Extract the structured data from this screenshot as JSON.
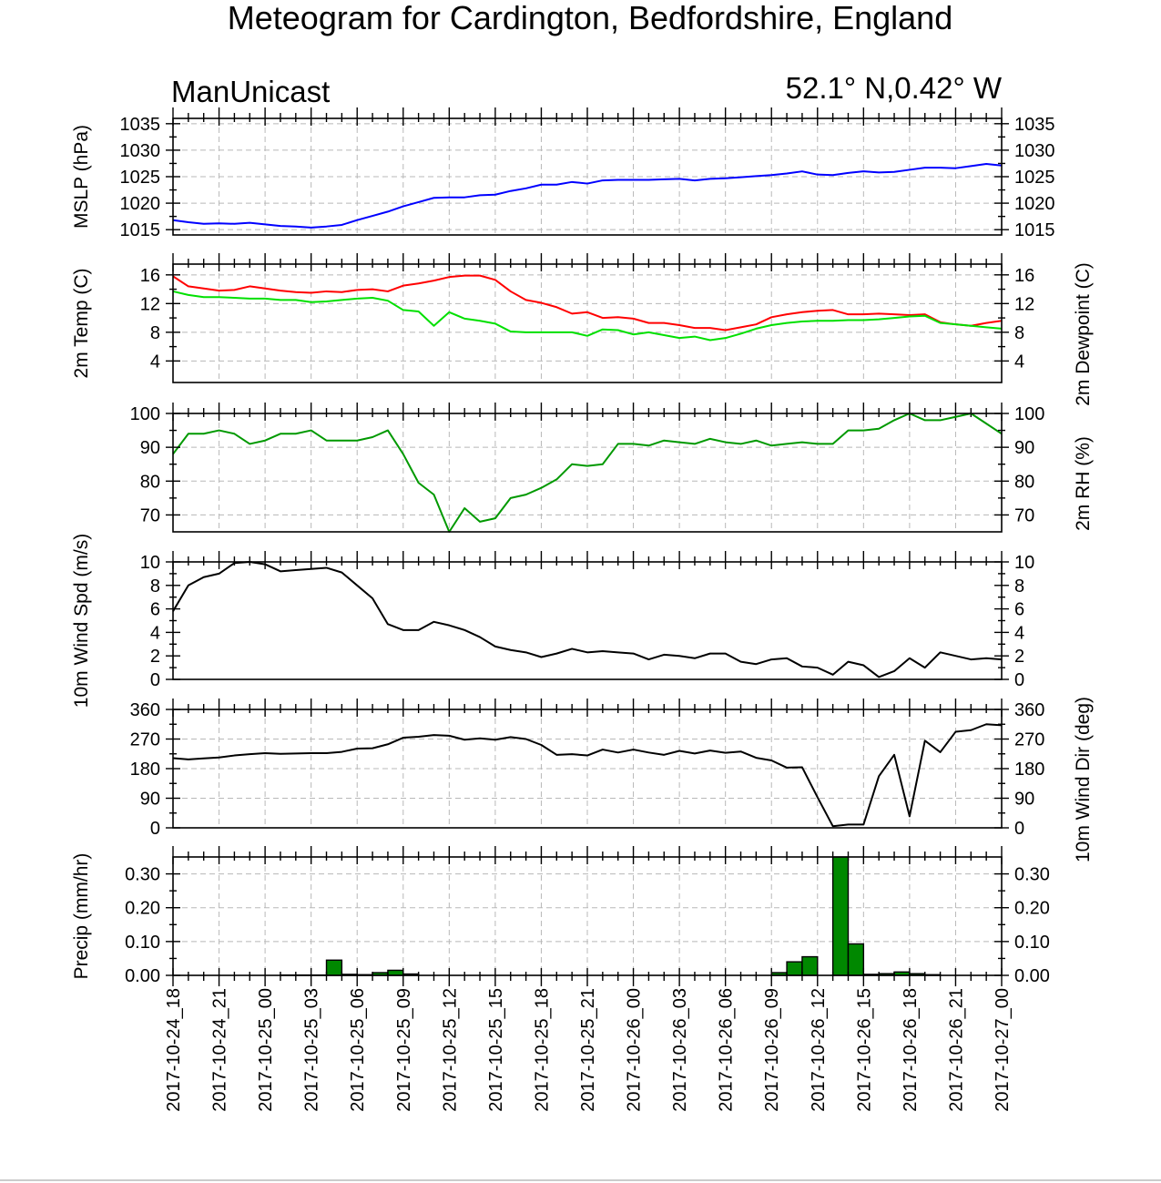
{
  "title": "Meteogram for Cardington, Bedfordshire, England",
  "model": "ManUnicast",
  "location": "52.1° N,0.42° W",
  "colors": {
    "mslp": "#0000ff",
    "temp": "#ff0000",
    "dewpoint": "#00e000",
    "rh": "#009900",
    "wind": "#000000",
    "precip_fill": "#008800"
  },
  "chart_data": [
    {
      "type": "line",
      "ylabel_left": "MSLP (hPa)",
      "ylabel_right": "",
      "ylim": [
        1014,
        1036
      ],
      "yticks": [
        1015,
        1020,
        1025,
        1030,
        1035
      ],
      "right_ticklabels": true,
      "grid": true,
      "x": [
        0,
        1,
        2,
        3,
        4,
        5,
        6,
        7,
        8,
        9,
        10,
        11,
        12,
        13,
        14,
        15,
        16,
        17,
        18,
        19,
        20,
        21,
        22,
        23,
        24,
        25,
        26,
        27,
        28,
        29,
        30,
        31,
        32,
        33,
        34,
        35,
        36,
        37,
        38,
        39,
        40,
        41,
        42,
        43,
        44,
        45,
        46,
        47,
        48,
        49,
        50,
        51,
        52,
        53,
        54
      ],
      "series": [
        {
          "name": "",
          "color": "#0000ff",
          "values": [
            1016.8,
            1016.4,
            1016.1,
            1016.2,
            1016.1,
            1016.3,
            1016.0,
            1015.7,
            1015.6,
            1015.4,
            1015.6,
            1015.9,
            1016.8,
            1017.6,
            1018.4,
            1019.4,
            1020.2,
            1021.0,
            1021.1,
            1021.1,
            1021.5,
            1021.6,
            1022.3,
            1022.8,
            1023.5,
            1023.5,
            1024.0,
            1023.7,
            1024.3,
            1024.4,
            1024.4,
            1024.4,
            1024.5,
            1024.6,
            1024.3,
            1024.6,
            1024.7,
            1024.9,
            1025.1,
            1025.3,
            1025.6,
            1026.0,
            1025.4,
            1025.3,
            1025.7,
            1026.0,
            1025.8,
            1025.9,
            1026.3,
            1026.7,
            1026.7,
            1026.6,
            1027.0,
            1027.4,
            1027.1
          ]
        }
      ]
    },
    {
      "type": "line",
      "ylabel_left": "2m Temp (C)",
      "ylabel_right": "2m Dewpoint (C)",
      "ylim": [
        1,
        17.5
      ],
      "yticks": [
        4,
        8,
        12,
        16
      ],
      "right_ticklabels": true,
      "grid": true,
      "x": [
        0,
        1,
        2,
        3,
        4,
        5,
        6,
        7,
        8,
        9,
        10,
        11,
        12,
        13,
        14,
        15,
        16,
        17,
        18,
        19,
        20,
        21,
        22,
        23,
        24,
        25,
        26,
        27,
        28,
        29,
        30,
        31,
        32,
        33,
        34,
        35,
        36,
        37,
        38,
        39,
        40,
        41,
        42,
        43,
        44,
        45,
        46,
        47,
        48,
        49,
        50,
        51,
        52,
        53,
        54
      ],
      "series": [
        {
          "name": "",
          "color": "#ff0000",
          "values": [
            15.8,
            14.4,
            14.1,
            13.8,
            13.9,
            14.4,
            14.1,
            13.8,
            13.6,
            13.5,
            13.7,
            13.6,
            13.9,
            14.0,
            13.7,
            14.5,
            14.8,
            15.2,
            15.7,
            15.9,
            15.9,
            15.3,
            13.7,
            12.5,
            12.1,
            11.5,
            10.6,
            10.8,
            10.0,
            10.1,
            9.9,
            9.3,
            9.3,
            9.0,
            8.6,
            8.6,
            8.3,
            8.7,
            9.1,
            10.1,
            10.5,
            10.8,
            11.0,
            11.1,
            10.5,
            10.5,
            10.6,
            10.5,
            10.4,
            10.5,
            9.4,
            9.1,
            8.9,
            9.3,
            9.6
          ]
        },
        {
          "name": "",
          "color": "#00e000",
          "values": [
            13.7,
            13.2,
            12.9,
            12.9,
            12.8,
            12.7,
            12.7,
            12.5,
            12.5,
            12.2,
            12.3,
            12.5,
            12.7,
            12.8,
            12.4,
            11.1,
            10.9,
            8.9,
            10.8,
            9.9,
            9.6,
            9.2,
            8.1,
            8.0,
            8.0,
            8.0,
            8.0,
            7.5,
            8.4,
            8.3,
            7.7,
            8.0,
            7.6,
            7.2,
            7.4,
            6.9,
            7.2,
            7.8,
            8.5,
            9.0,
            9.3,
            9.5,
            9.6,
            9.6,
            9.7,
            9.7,
            9.8,
            10.0,
            10.2,
            10.3,
            9.3,
            9.1,
            8.9,
            8.7,
            8.5
          ]
        }
      ]
    },
    {
      "type": "line",
      "ylabel_left": "",
      "ylabel_right": "2m RH (%)",
      "ylim": [
        65,
        100
      ],
      "yticks": [
        70,
        80,
        90,
        100
      ],
      "right_ticklabels": true,
      "grid": true,
      "x": [
        0,
        1,
        2,
        3,
        4,
        5,
        6,
        7,
        8,
        9,
        10,
        11,
        12,
        13,
        14,
        15,
        16,
        17,
        18,
        19,
        20,
        21,
        22,
        23,
        24,
        25,
        26,
        27,
        28,
        29,
        30,
        31,
        32,
        33,
        34,
        35,
        36,
        37,
        38,
        39,
        40,
        41,
        42,
        43,
        44,
        45,
        46,
        47,
        48,
        49,
        50,
        51,
        52,
        53,
        54
      ],
      "series": [
        {
          "name": "",
          "color": "#009900",
          "values": [
            88,
            94,
            94,
            95,
            94,
            91,
            92,
            94,
            94,
            95,
            92,
            92,
            92,
            93,
            95,
            88,
            79.5,
            76,
            65,
            72,
            68,
            69,
            75,
            76,
            78,
            80.5,
            85,
            84.5,
            85,
            91,
            91,
            90.5,
            92,
            91.5,
            91,
            92.5,
            91.5,
            91,
            92,
            90.5,
            91,
            91.5,
            91,
            91,
            95,
            95,
            95.5,
            98,
            100,
            98,
            98,
            99,
            100,
            97,
            94
          ]
        }
      ]
    },
    {
      "type": "line",
      "ylabel_left": "10m Wind Spd (m/s)",
      "ylabel_right": "",
      "ylim": [
        0,
        10
      ],
      "yticks": [
        0,
        2,
        4,
        6,
        8,
        10
      ],
      "right_ticklabels": true,
      "grid": false,
      "x": [
        0,
        1,
        2,
        3,
        4,
        5,
        6,
        7,
        8,
        9,
        10,
        11,
        12,
        13,
        14,
        15,
        16,
        17,
        18,
        19,
        20,
        21,
        22,
        23,
        24,
        25,
        26,
        27,
        28,
        29,
        30,
        31,
        32,
        33,
        34,
        35,
        36,
        37,
        38,
        39,
        40,
        41,
        42,
        43,
        44,
        45,
        46,
        47,
        48,
        49,
        50,
        51,
        52,
        53,
        54
      ],
      "series": [
        {
          "name": "",
          "color": "#000000",
          "values": [
            5.8,
            8.0,
            8.7,
            9.0,
            9.9,
            10.0,
            9.8,
            9.2,
            9.3,
            9.4,
            9.5,
            9.1,
            8.0,
            6.9,
            4.7,
            4.2,
            4.2,
            4.9,
            4.6,
            4.2,
            3.6,
            2.8,
            2.5,
            2.3,
            1.9,
            2.2,
            2.6,
            2.3,
            2.4,
            2.3,
            2.2,
            1.7,
            2.1,
            2.0,
            1.8,
            2.2,
            2.2,
            1.5,
            1.3,
            1.7,
            1.8,
            1.1,
            1.0,
            0.4,
            1.5,
            1.2,
            0.2,
            0.7,
            1.8,
            1.0,
            2.3,
            2.0,
            1.7,
            1.8,
            1.7
          ]
        }
      ]
    },
    {
      "type": "line",
      "ylabel_left": "",
      "ylabel_right": "10m Wind Dir (deg)",
      "ylim": [
        0,
        360
      ],
      "yticks": [
        0,
        90,
        180,
        270,
        360
      ],
      "right_ticklabels": true,
      "grid": true,
      "x": [
        0,
        1,
        2,
        3,
        4,
        5,
        6,
        7,
        8,
        9,
        10,
        11,
        12,
        13,
        14,
        15,
        16,
        17,
        18,
        19,
        20,
        21,
        22,
        23,
        24,
        25,
        26,
        27,
        28,
        29,
        30,
        31,
        32,
        33,
        34,
        35,
        36,
        37,
        38,
        39,
        40,
        41,
        42,
        43,
        44,
        45,
        46,
        47,
        48,
        49,
        50,
        51,
        52,
        53,
        54
      ],
      "series": [
        {
          "name": "",
          "color": "#000000",
          "values": [
            212,
            208,
            211,
            214,
            220,
            224,
            227,
            225,
            226,
            227,
            227,
            231,
            241,
            242,
            254,
            274,
            277,
            282,
            280,
            268,
            272,
            268,
            276,
            270,
            252,
            222,
            224,
            220,
            238,
            229,
            238,
            229,
            222,
            234,
            226,
            235,
            228,
            232,
            213,
            205,
            183,
            184,
            93,
            5,
            10,
            10,
            157,
            222,
            35,
            265,
            230,
            292,
            297,
            315,
            312
          ]
        }
      ]
    },
    {
      "type": "bar",
      "ylabel_left": "Precip (mm/hr)",
      "ylabel_right": "",
      "ylim": [
        0,
        0.35
      ],
      "yticks": [
        0.0,
        0.1,
        0.2,
        0.3
      ],
      "ytick_labels": [
        "0.00",
        "0.10",
        "0.20",
        "0.30"
      ],
      "right_ticklabels": true,
      "grid": true,
      "x": [
        0,
        1,
        2,
        3,
        4,
        5,
        6,
        7,
        8,
        9,
        10,
        11,
        12,
        13,
        14,
        15,
        16,
        17,
        18,
        19,
        20,
        21,
        22,
        23,
        24,
        25,
        26,
        27,
        28,
        29,
        30,
        31,
        32,
        33,
        34,
        35,
        36,
        37,
        38,
        39,
        40,
        41,
        42,
        43,
        44,
        45,
        46,
        47,
        48,
        49,
        50,
        51,
        52,
        53,
        54
      ],
      "values": [
        0,
        0,
        0,
        0,
        0,
        0,
        0,
        0.001,
        0.001,
        0.001,
        0.045,
        0.003,
        0.002,
        0.008,
        0.015,
        0.004,
        0,
        0,
        0,
        0,
        0,
        0,
        0,
        0,
        0,
        0,
        0,
        0,
        0,
        0,
        0,
        0,
        0,
        0,
        0,
        0,
        0,
        0,
        0,
        0.008,
        0.04,
        0.055,
        0,
        0.35,
        0.093,
        0.003,
        0.005,
        0.01,
        0.005,
        0.002,
        0,
        0,
        0,
        0,
        0
      ]
    }
  ],
  "x_axis": {
    "tick_labels": [
      "2017-10-24_18",
      "2017-10-24_21",
      "2017-10-25_00",
      "2017-10-25_03",
      "2017-10-25_06",
      "2017-10-25_09",
      "2017-10-25_12",
      "2017-10-25_15",
      "2017-10-25_18",
      "2017-10-25_21",
      "2017-10-26_00",
      "2017-10-26_03",
      "2017-10-26_06",
      "2017-10-26_09",
      "2017-10-26_12",
      "2017-10-26_15",
      "2017-10-26_18",
      "2017-10-26_21",
      "2017-10-27_00"
    ]
  }
}
